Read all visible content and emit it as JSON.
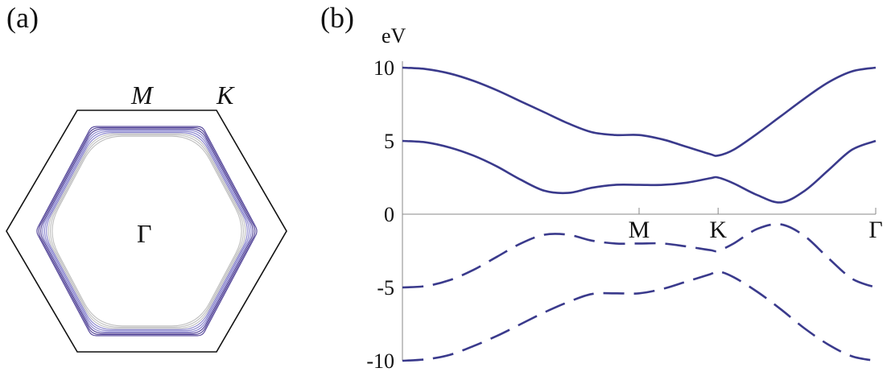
{
  "panel_a": {
    "label": "(a)",
    "point_labels": {
      "M": "M",
      "K": "K",
      "Gamma": "Γ"
    },
    "colors": {
      "zone": "#111111",
      "contour_outer": "#3b2a8a",
      "contour_mid": "#7a74c8",
      "contour_inner": "#b8b8b8"
    }
  },
  "panel_b": {
    "label": "(b)"
  },
  "chart_data": {
    "type": "line",
    "ylabel": "eV",
    "ylim": [
      -10,
      10
    ],
    "yticks": [
      10,
      5,
      0,
      -5,
      -10
    ],
    "ytick_labels": [
      "10",
      "5",
      "0",
      "-5",
      "-10"
    ],
    "x_kpoints": [
      "M",
      "K",
      "Γ"
    ],
    "x_kpoint_positions": [
      0.5,
      0.667,
      1.0
    ],
    "x": [
      0.0,
      0.05,
      0.1,
      0.15,
      0.2,
      0.25,
      0.3,
      0.35,
      0.4,
      0.45,
      0.5,
      0.55,
      0.6,
      0.65,
      0.667,
      0.7,
      0.75,
      0.8,
      0.85,
      0.9,
      0.95,
      1.0
    ],
    "series": [
      {
        "style": "solid",
        "color": "#3a3a8c",
        "values": [
          10.0,
          9.9,
          9.6,
          9.1,
          8.45,
          7.7,
          6.95,
          6.2,
          5.6,
          5.4,
          5.4,
          5.1,
          4.6,
          4.1,
          4.0,
          4.4,
          5.5,
          6.7,
          7.9,
          9.0,
          9.75,
          10.0
        ]
      },
      {
        "style": "solid",
        "color": "#3a3a8c",
        "values": [
          5.0,
          4.9,
          4.55,
          4.0,
          3.25,
          2.35,
          1.6,
          1.45,
          1.8,
          2.0,
          2.0,
          2.0,
          2.15,
          2.45,
          2.5,
          2.1,
          1.3,
          0.8,
          1.6,
          3.0,
          4.4,
          5.0
        ]
      },
      {
        "style": "dashed",
        "color": "#3a3a8c",
        "values": [
          -5.0,
          -4.9,
          -4.5,
          -3.8,
          -2.9,
          -2.0,
          -1.4,
          -1.4,
          -1.8,
          -2.0,
          -2.0,
          -2.0,
          -2.2,
          -2.45,
          -2.5,
          -2.0,
          -1.0,
          -0.7,
          -1.5,
          -3.0,
          -4.4,
          -5.0
        ]
      },
      {
        "style": "dashed",
        "color": "#3a3a8c",
        "values": [
          -10.0,
          -9.9,
          -9.6,
          -9.0,
          -8.3,
          -7.5,
          -6.7,
          -6.0,
          -5.45,
          -5.4,
          -5.4,
          -5.1,
          -4.6,
          -4.1,
          -3.9,
          -4.3,
          -5.3,
          -6.5,
          -7.8,
          -8.9,
          -9.7,
          -10.0
        ]
      }
    ],
    "grid": false
  }
}
